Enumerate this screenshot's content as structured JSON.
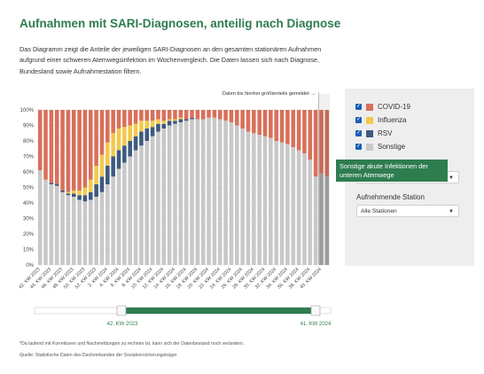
{
  "title": "Aufnahmen mit SARI-Diagnosen, anteilig nach Diagnose",
  "description": "Das Diagramm zeigt die Anteile der jeweiligen SARI-Diagnosen an den gesamten stationären Aufnahmen aufgrund einer schweren Atemwegsinfektion im Wochenvergleich. Die Daten lassen sich nach Diagnose, Bundesland sowie Aufnahmestation filtern.",
  "note_top": "Daten bis hierher größtenteils gemeldet",
  "colors": {
    "covid": "#d9705a",
    "influenza": "#f2c94c",
    "rsv": "#3d5a80",
    "sonstige": "#c8c8c8",
    "accent": "#2e7d4f"
  },
  "legend": [
    {
      "label": "COVID-19",
      "color": "#d9705a"
    },
    {
      "label": "Influenza",
      "color": "#f2c94c"
    },
    {
      "label": "RSV",
      "color": "#3d5a80"
    },
    {
      "label": "Sonstige",
      "color": "#c8c8c8"
    }
  ],
  "tooltip": "Sonstige akute Infektionen der unteren Atemwege",
  "station_label": "Aufnehmende Station",
  "station_value": "Alle Stationen",
  "range_start": "42. KW 2023",
  "range_end": "41. KW 2024",
  "footnote1": "*Da laufend mit Korrekturen und Nachmeldungen zu rechnen ist, kann sich der Datenbestand noch verändern.",
  "footnote2": "Quelle: Statistische Daten des Dachverbandes der Sozialversicherungsträger",
  "chart_data": {
    "type": "bar",
    "stacked": true,
    "ylim": [
      0,
      100
    ],
    "yticks": [
      "0%",
      "10%",
      "20%",
      "30%",
      "40%",
      "50%",
      "60%",
      "70%",
      "80%",
      "90%",
      "100%"
    ],
    "categories": [
      "42. KW 2023",
      "43. KW 2023",
      "44. KW 2023",
      "45. KW 2023",
      "46. KW 2023",
      "47. KW 2023",
      "48. KW 2023",
      "49. KW 2023",
      "50. KW 2023",
      "51. KW 2023",
      "52. KW 2023",
      "1. KW 2024",
      "2. KW 2024",
      "3. KW 2024",
      "4. KW 2024",
      "5. KW 2024",
      "6. KW 2024",
      "7. KW 2024",
      "8. KW 2024",
      "9. KW 2024",
      "10. KW 2024",
      "11. KW 2024",
      "12. KW 2024",
      "13. KW 2024",
      "14. KW 2024",
      "15. KW 2024",
      "16. KW 2024",
      "17. KW 2024",
      "18. KW 2024",
      "19. KW 2024",
      "20. KW 2024",
      "21. KW 2024",
      "22. KW 2024",
      "23. KW 2024",
      "24. KW 2024",
      "25. KW 2024",
      "26. KW 2024",
      "27. KW 2024",
      "28. KW 2024",
      "29. KW 2024",
      "30. KW 2024",
      "31. KW 2024",
      "32. KW 2024",
      "33. KW 2024",
      "34. KW 2024",
      "35. KW 2024",
      "36. KW 2024",
      "37. KW 2024",
      "38. KW 2024",
      "39. KW 2024",
      "40. KW 2024",
      "41. KW 2024"
    ],
    "xticklabels": [
      "42. KW 2023",
      "44. KW 2023",
      "46. KW 2023",
      "48. KW 2023",
      "50. KW 2023",
      "52. KW 2023",
      "2. KW 2024",
      "4. KW 2024",
      "6. KW 2024",
      "8. KW 2024",
      "10. KW 2024",
      "12. KW 2024",
      "14. KW 2024",
      "16. KW 2024",
      "18. KW 2024",
      "20. KW 2024",
      "22. KW 2024",
      "24. KW 2024",
      "26. KW 2024",
      "28. KW 2024",
      "30. KW 2024",
      "32. KW 2024",
      "34. KW 2024",
      "36. KW 2024",
      "38. KW 2024",
      "40. KW 2024"
    ],
    "series": [
      {
        "name": "Sonstige",
        "values": [
          61,
          55,
          52,
          51,
          47,
          45,
          44,
          42,
          41,
          42,
          44,
          47,
          52,
          57,
          62,
          66,
          70,
          74,
          77,
          80,
          83,
          86,
          88,
          90,
          91,
          92,
          93,
          94,
          94,
          94,
          95,
          95,
          94,
          93,
          92,
          90,
          88,
          86,
          85,
          84,
          83,
          82,
          80,
          79,
          78,
          76,
          74,
          72,
          68,
          57,
          59,
          57
        ]
      },
      {
        "name": "RSV",
        "values": [
          0,
          0,
          1,
          1,
          1,
          1,
          2,
          3,
          4,
          5,
          8,
          10,
          12,
          13,
          12,
          11,
          10,
          9,
          9,
          8,
          6,
          5,
          3,
          3,
          2,
          2,
          1,
          1,
          0,
          0,
          0,
          0,
          0,
          0,
          0,
          0,
          0,
          0,
          0,
          0,
          0,
          0,
          0,
          0,
          0,
          0,
          0,
          0,
          0,
          0,
          0,
          0
        ]
      },
      {
        "name": "Influenza",
        "values": [
          0,
          0,
          0,
          0,
          0,
          1,
          2,
          3,
          5,
          8,
          12,
          14,
          15,
          15,
          14,
          12,
          10,
          8,
          7,
          5,
          4,
          3,
          2,
          1,
          1,
          1,
          0,
          0,
          0,
          0,
          0,
          0,
          0,
          0,
          0,
          0,
          0,
          0,
          0,
          0,
          0,
          0,
          0,
          0,
          0,
          0,
          0,
          0,
          0,
          0,
          0,
          0
        ]
      },
      {
        "name": "COVID-19",
        "values": [
          39,
          45,
          47,
          48,
          52,
          53,
          52,
          52,
          50,
          45,
          36,
          29,
          21,
          15,
          12,
          11,
          10,
          9,
          7,
          7,
          7,
          6,
          7,
          6,
          6,
          5,
          6,
          5,
          6,
          6,
          5,
          5,
          6,
          7,
          8,
          10,
          12,
          14,
          15,
          16,
          17,
          18,
          20,
          21,
          22,
          24,
          26,
          28,
          32,
          43,
          41,
          43
        ]
      }
    ],
    "note_index": 50
  }
}
